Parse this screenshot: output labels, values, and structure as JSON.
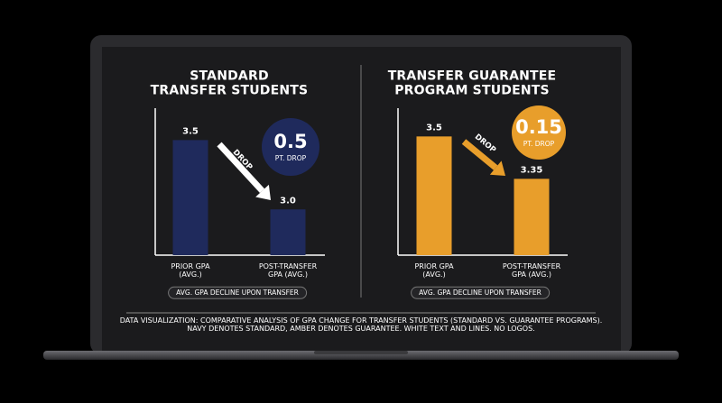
{
  "chart_data": [
    {
      "type": "bar",
      "title": "STANDARD\nTRANSFER STUDENTS",
      "categories": [
        "PRIOR GPA\n(AVG.)",
        "POST-TRANSFER\nGPA (AVG.)"
      ],
      "values": [
        3.5,
        3.0
      ],
      "value_labels": [
        "3.5",
        "3.0"
      ],
      "color": "#1f2a5c",
      "ylim": [
        2.67,
        3.73
      ],
      "badge_value": "0.5",
      "badge_label": "PT. DROP",
      "arrow_label": "DROP",
      "footnote": "AVG. GPA DECLINE UPON TRANSFER"
    },
    {
      "type": "bar",
      "title": "TRANSFER GUARANTEE\nPROGRAM STUDENTS",
      "categories": [
        "PRIOR GPA\n(AVG.)",
        "POST-TRANSFER\nGPA (AVG.)"
      ],
      "values": [
        3.5,
        3.35
      ],
      "value_labels": [
        "3.5",
        "3.35"
      ],
      "color": "#e89e2b",
      "ylim": [
        3.08,
        3.6
      ],
      "badge_value": "0.15",
      "badge_label": "PT. DROP",
      "arrow_label": "DROP",
      "footnote": "AVG. GPA DECLINE UPON TRANSFER"
    }
  ],
  "caption": "DATA VISUALIZATION: COMPARATIVE ANALYSIS OF GPA CHANGE FOR TRANSFER STUDENTS (STANDARD VS. GUARANTEE PROGRAMS).\nNAVY DENOTES STANDARD, AMBER DENOTES GUARANTEE. WHITE TEXT AND LINES. NO LOGOS."
}
